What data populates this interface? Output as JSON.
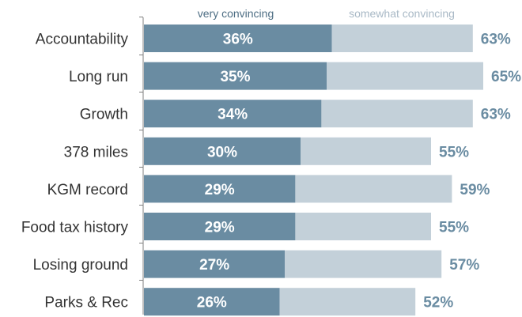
{
  "chart_data": {
    "type": "bar",
    "orientation": "horizontal",
    "stacked": true,
    "categories": [
      "Accountability",
      "Long run",
      "Growth",
      "378 miles",
      "KGM record",
      "Food tax history",
      "Losing ground",
      "Parks & Rec"
    ],
    "series": [
      {
        "name": "very convincing",
        "values": [
          36,
          35,
          34,
          30,
          29,
          29,
          27,
          26
        ],
        "color": "#6a8ca2"
      },
      {
        "name": "somewhat convincing",
        "values": [
          27,
          30,
          29,
          25,
          30,
          26,
          30,
          26
        ],
        "color": "#c3d0d9"
      }
    ],
    "inner_labels": [
      "36%",
      "35%",
      "34%",
      "30%",
      "29%",
      "29%",
      "27%",
      "26%"
    ],
    "total_labels": [
      "63%",
      "65%",
      "63%",
      "55%",
      "59%",
      "55%",
      "57%",
      "52%"
    ],
    "totals": [
      63,
      65,
      63,
      55,
      59,
      55,
      57,
      52
    ],
    "xlim": [
      0,
      65
    ],
    "legend": "top",
    "grid": false,
    "label_color": "#6a8ca2",
    "legend_colors": {
      "very convincing": "#4e6e84",
      "somewhat convincing": "#a9b9c6"
    }
  }
}
